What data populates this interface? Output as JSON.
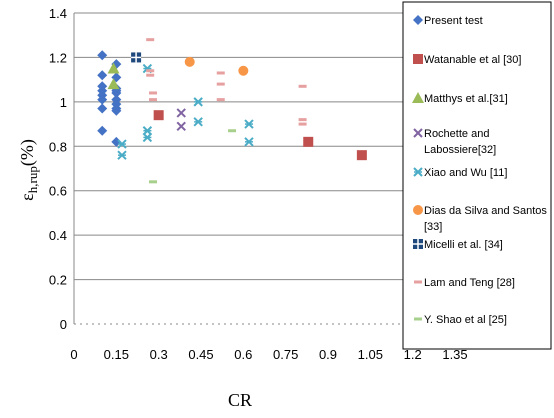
{
  "chart_data": {
    "type": "scatter",
    "title": "",
    "xlabel": "CR",
    "ylabel_main": "ε",
    "ylabel_sub": "h,rup",
    "ylabel_suffix": "(%)",
    "xlim": [
      0,
      1.35
    ],
    "ylim": [
      0,
      1.4
    ],
    "x_ticks": [
      "0",
      "0.15",
      "0.3",
      "0.45",
      "0.6",
      "0.75",
      "0.9",
      "1.05",
      "1.2",
      "1.35"
    ],
    "y_ticks": [
      "0",
      "0.2",
      "0.4",
      "0.6",
      "0.8",
      "1",
      "1.2",
      "1.4"
    ],
    "grid": "horizontal",
    "legend_position": "right",
    "series": [
      {
        "name": "Present test",
        "marker": "diamond",
        "color": "#4472C4",
        "points": [
          [
            0.1,
            1.21
          ],
          [
            0.1,
            1.12
          ],
          [
            0.1,
            1.07
          ],
          [
            0.1,
            1.05
          ],
          [
            0.1,
            1.03
          ],
          [
            0.1,
            1.01
          ],
          [
            0.1,
            0.97
          ],
          [
            0.1,
            0.87
          ],
          [
            0.15,
            1.17
          ],
          [
            0.15,
            1.11
          ],
          [
            0.15,
            1.06
          ],
          [
            0.15,
            1.05
          ],
          [
            0.15,
            1.04
          ],
          [
            0.15,
            1.01
          ],
          [
            0.15,
            0.99
          ],
          [
            0.15,
            0.97
          ],
          [
            0.15,
            0.96
          ],
          [
            0.15,
            0.82
          ]
        ]
      },
      {
        "name": "Watanable et al [30]",
        "marker": "square",
        "color": "#C0504D",
        "points": [
          [
            0.3,
            0.94
          ],
          [
            0.83,
            0.82
          ],
          [
            1.02,
            0.76
          ]
        ]
      },
      {
        "name": "Matthys et al.[31]",
        "marker": "triangle",
        "color": "#9BBB59",
        "points": [
          [
            0.14,
            1.15
          ],
          [
            0.14,
            1.08
          ]
        ]
      },
      {
        "name": "Rochette and Labossiere[32]",
        "marker": "x",
        "color": "#8064A2",
        "points": [
          [
            0.38,
            0.95
          ],
          [
            0.38,
            0.89
          ]
        ]
      },
      {
        "name": "Xiao and Wu [11]",
        "marker": "star",
        "color": "#4BACC6",
        "points": [
          [
            0.26,
            1.15
          ],
          [
            0.26,
            0.87
          ],
          [
            0.26,
            0.84
          ],
          [
            0.17,
            0.81
          ],
          [
            0.17,
            0.76
          ],
          [
            0.44,
            1.0
          ],
          [
            0.44,
            0.91
          ],
          [
            0.62,
            0.9
          ],
          [
            0.62,
            0.82
          ]
        ]
      },
      {
        "name": "Dias da Silva and Santos [33]",
        "marker": "circle",
        "color": "#F79646",
        "points": [
          [
            0.41,
            1.18
          ],
          [
            0.6,
            1.14
          ]
        ]
      },
      {
        "name": "Micelli et al. [34]",
        "marker": "plus-square",
        "color": "#1F497D",
        "points": [
          [
            0.22,
            1.2
          ]
        ]
      },
      {
        "name": "Lam and Teng [28]",
        "marker": "dash",
        "color": "#E6A0A0",
        "points": [
          [
            0.27,
            1.28
          ],
          [
            0.27,
            1.14
          ],
          [
            0.27,
            1.12
          ],
          [
            0.28,
            1.04
          ],
          [
            0.28,
            1.01
          ],
          [
            0.52,
            1.13
          ],
          [
            0.52,
            1.08
          ],
          [
            0.52,
            1.01
          ],
          [
            0.81,
            1.07
          ],
          [
            0.81,
            0.92
          ],
          [
            0.81,
            0.9
          ]
        ]
      },
      {
        "name": "Y. Shao et al [25]",
        "marker": "dash",
        "color": "#A7D08C",
        "points": [
          [
            0.28,
            0.64
          ],
          [
            0.56,
            0.87
          ]
        ]
      }
    ]
  }
}
